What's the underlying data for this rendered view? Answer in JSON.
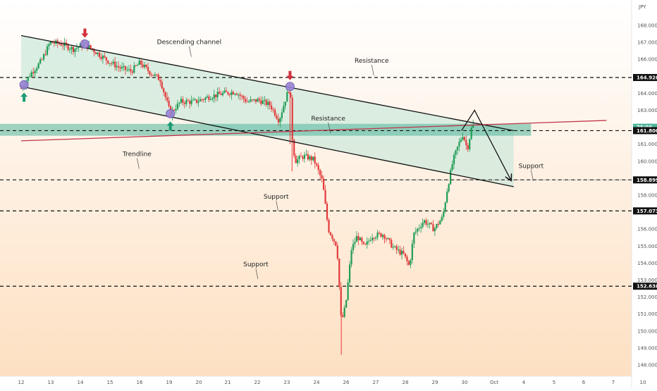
{
  "chart_data": {
    "type": "candlestick",
    "currency": "JPY",
    "colors": {
      "up": "#1f9c55",
      "down": "#e23a3a",
      "channel": "#111111",
      "channel_fill": "#cfe9dc",
      "zone": "#4fb79b",
      "trendline": "#c0364a",
      "arrow_down": "#d32f3c",
      "arrow_up": "#1a9a73",
      "marker": "#9b84d6",
      "bg_top": "#ffffff",
      "bg_bottom": "#fde0c2"
    },
    "y_axis": {
      "ylim": [
        147.6,
        169.0
      ],
      "ticks": [
        "168.000",
        "167.000",
        "166.000",
        "165.000",
        "164.000",
        "163.000",
        "162.000",
        "161.000",
        "160.000",
        "159.000",
        "158.000",
        "157.000",
        "156.000",
        "155.000",
        "154.000",
        "153.000",
        "152.000",
        "151.000",
        "150.000",
        "149.000",
        "148.000"
      ],
      "tags": [
        {
          "label": "164.928",
          "price": 164.928,
          "style": "black"
        },
        {
          "label": "75:06",
          "price": 162.0,
          "style": "teal"
        },
        {
          "label": "161.800",
          "price": 161.8,
          "style": "black"
        },
        {
          "label": "158.899",
          "price": 158.899,
          "style": "black"
        },
        {
          "label": "157.073",
          "price": 157.073,
          "style": "black"
        },
        {
          "label": "152.638",
          "price": 152.638,
          "style": "black"
        }
      ]
    },
    "x_axis": {
      "labels": [
        "12",
        "13",
        "14",
        "15",
        "16",
        "19",
        "20",
        "21",
        "22",
        "23",
        "24",
        "26",
        "27",
        "28",
        "29",
        "30",
        "Oct",
        "4",
        "5",
        "6",
        "7",
        "10"
      ],
      "xlim": [
        0,
        22.5
      ]
    },
    "annotations": [
      {
        "text": "Descending channel",
        "x": 5.8,
        "price": 166.9
      },
      {
        "text": "Resistance",
        "x": 12.1,
        "price": 165.8
      },
      {
        "text": "Resistance",
        "x": 10.6,
        "price": 162.4
      },
      {
        "text": "Trendline",
        "x": 4.0,
        "price": 160.3
      },
      {
        "text": "Support",
        "x": 8.8,
        "price": 157.8
      },
      {
        "text": "Support",
        "x": 17.6,
        "price": 159.6
      },
      {
        "text": "Support",
        "x": 8.1,
        "price": 153.8
      }
    ],
    "horizontal_levels": [
      164.928,
      161.8,
      158.899,
      157.073,
      152.638
    ],
    "resistance_zone": [
      161.5,
      162.2
    ],
    "channel": {
      "upper": [
        [
          0,
          167.4
        ],
        [
          17.0,
          161.8
        ]
      ],
      "lower": [
        [
          0,
          164.4
        ],
        [
          17.0,
          158.5
        ]
      ]
    },
    "trendline": [
      [
        0,
        161.2
      ],
      [
        20.2,
        162.4
      ]
    ],
    "projection": [
      [
        15.2,
        161.8
      ],
      [
        15.65,
        163.0
      ],
      [
        16.9,
        158.9
      ]
    ],
    "markers": [
      {
        "x": 0.1,
        "price": 164.5,
        "arrow": "up"
      },
      {
        "x": 2.2,
        "price": 166.9,
        "arrow": "down"
      },
      {
        "x": 5.15,
        "price": 162.8,
        "arrow": "up"
      },
      {
        "x": 9.28,
        "price": 164.4,
        "arrow": "down"
      }
    ],
    "candles_anchors": [
      [
        0.0,
        164.3
      ],
      [
        0.35,
        165.2
      ],
      [
        0.7,
        165.9
      ],
      [
        1.0,
        167.0
      ],
      [
        1.4,
        166.9
      ],
      [
        1.8,
        166.6
      ],
      [
        2.2,
        166.9
      ],
      [
        2.6,
        166.4
      ],
      [
        3.0,
        165.9
      ],
      [
        3.4,
        165.5
      ],
      [
        3.8,
        165.3
      ],
      [
        4.1,
        165.8
      ],
      [
        4.4,
        165.3
      ],
      [
        4.8,
        164.8
      ],
      [
        5.15,
        162.8
      ],
      [
        5.5,
        163.5
      ],
      [
        6.0,
        163.5
      ],
      [
        6.5,
        163.8
      ],
      [
        7.0,
        164.0
      ],
      [
        7.4,
        164.1
      ],
      [
        7.8,
        163.5
      ],
      [
        8.2,
        163.6
      ],
      [
        8.6,
        163.3
      ],
      [
        8.9,
        162.4
      ],
      [
        9.15,
        163.8
      ],
      [
        9.28,
        164.4
      ],
      [
        9.35,
        161.5
      ],
      [
        9.45,
        160.0
      ],
      [
        9.75,
        160.3
      ],
      [
        10.1,
        160.1
      ],
      [
        10.4,
        158.8
      ],
      [
        10.6,
        156.0
      ],
      [
        10.9,
        155.0
      ],
      [
        11.05,
        150.5
      ],
      [
        11.2,
        151.5
      ],
      [
        11.4,
        154.8
      ],
      [
        11.6,
        155.6
      ],
      [
        11.85,
        154.9
      ],
      [
        12.1,
        155.6
      ],
      [
        12.5,
        155.7
      ],
      [
        12.85,
        154.9
      ],
      [
        13.2,
        154.5
      ],
      [
        13.4,
        153.8
      ],
      [
        13.55,
        155.7
      ],
      [
        13.9,
        156.5
      ],
      [
        14.25,
        156.0
      ],
      [
        14.55,
        156.7
      ],
      [
        14.7,
        158.3
      ],
      [
        14.9,
        160.0
      ],
      [
        15.1,
        161.0
      ],
      [
        15.25,
        161.6
      ],
      [
        15.4,
        160.7
      ],
      [
        15.55,
        162.0
      ],
      [
        15.65,
        162.2
      ]
    ]
  }
}
